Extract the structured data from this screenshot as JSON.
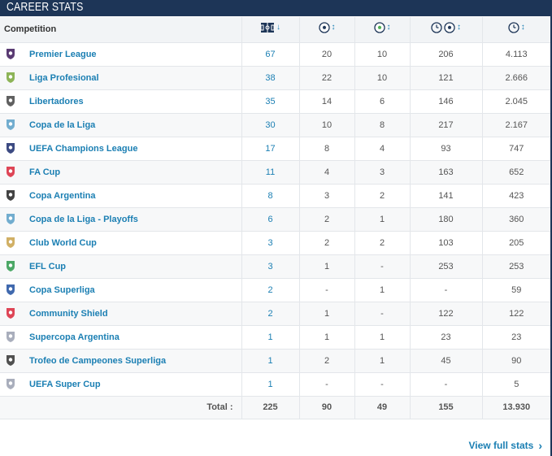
{
  "header": {
    "title": "CAREER STATS"
  },
  "table": {
    "competition_header": "Competition",
    "column_icons": [
      {
        "name": "appearances-icon",
        "sort": "desc"
      },
      {
        "name": "goals-icon",
        "sort": "both"
      },
      {
        "name": "assists-icon",
        "sort": "both"
      },
      {
        "name": "minutes-per-goal-icon",
        "sort": "both"
      },
      {
        "name": "minutes-played-icon",
        "sort": "both"
      }
    ],
    "sort_glyphs": {
      "desc": "↓",
      "both": "↕"
    },
    "rows": [
      {
        "competition": "Premier League",
        "logo": "premier-league-logo",
        "apps": "67",
        "goals": "20",
        "assists": "10",
        "min_per_goal": "206",
        "minutes": "4.113",
        "color": "#3d195b"
      },
      {
        "competition": "Liga Profesional",
        "logo": "liga-profesional-logo",
        "apps": "38",
        "goals": "22",
        "assists": "10",
        "min_per_goal": "121",
        "minutes": "2.666",
        "color": "#7aa83b"
      },
      {
        "competition": "Libertadores",
        "logo": "libertadores-logo",
        "apps": "35",
        "goals": "14",
        "assists": "6",
        "min_per_goal": "146",
        "minutes": "2.045",
        "color": "#444444"
      },
      {
        "competition": "Copa de la Liga",
        "logo": "copa-de-la-liga-logo",
        "apps": "30",
        "goals": "10",
        "assists": "8",
        "min_per_goal": "217",
        "minutes": "2.167",
        "color": "#5aa0c8"
      },
      {
        "competition": "UEFA Champions League",
        "logo": "champions-league-logo",
        "apps": "17",
        "goals": "8",
        "assists": "4",
        "min_per_goal": "93",
        "minutes": "747",
        "color": "#1a2a6c"
      },
      {
        "competition": "FA Cup",
        "logo": "fa-cup-logo",
        "apps": "11",
        "goals": "4",
        "assists": "3",
        "min_per_goal": "163",
        "minutes": "652",
        "color": "#d9263a"
      },
      {
        "competition": "Copa Argentina",
        "logo": "copa-argentina-logo",
        "apps": "8",
        "goals": "3",
        "assists": "2",
        "min_per_goal": "141",
        "minutes": "423",
        "color": "#222222"
      },
      {
        "competition": "Copa de la Liga - Playoffs",
        "logo": "copa-de-la-liga-playoffs-logo",
        "apps": "6",
        "goals": "2",
        "assists": "1",
        "min_per_goal": "180",
        "minutes": "360",
        "color": "#5aa0c8"
      },
      {
        "competition": "Club World Cup",
        "logo": "club-world-cup-logo",
        "apps": "3",
        "goals": "2",
        "assists": "2",
        "min_per_goal": "103",
        "minutes": "205",
        "color": "#c9a24a"
      },
      {
        "competition": "EFL Cup",
        "logo": "efl-cup-logo",
        "apps": "3",
        "goals": "1",
        "assists": "-",
        "min_per_goal": "253",
        "minutes": "253",
        "color": "#2e9a4c"
      },
      {
        "competition": "Copa Superliga",
        "logo": "copa-superliga-logo",
        "apps": "2",
        "goals": "-",
        "assists": "1",
        "min_per_goal": "-",
        "minutes": "59",
        "color": "#1e4fa0"
      },
      {
        "competition": "Community Shield",
        "logo": "community-shield-logo",
        "apps": "2",
        "goals": "1",
        "assists": "-",
        "min_per_goal": "122",
        "minutes": "122",
        "color": "#d9263a"
      },
      {
        "competition": "Supercopa Argentina",
        "logo": "supercopa-argentina-logo",
        "apps": "1",
        "goals": "1",
        "assists": "1",
        "min_per_goal": "23",
        "minutes": "23",
        "color": "#9aa0b0"
      },
      {
        "competition": "Trofeo de Campeones Superliga",
        "logo": "trofeo-de-campeones-logo",
        "apps": "1",
        "goals": "2",
        "assists": "1",
        "min_per_goal": "45",
        "minutes": "90",
        "color": "#333333"
      },
      {
        "competition": "UEFA Super Cup",
        "logo": "uefa-super-cup-logo",
        "apps": "1",
        "goals": "-",
        "assists": "-",
        "min_per_goal": "-",
        "minutes": "5",
        "color": "#9aa0b0"
      }
    ],
    "totals": {
      "label": "Total :",
      "apps": "225",
      "goals": "90",
      "assists": "49",
      "min_per_goal": "155",
      "minutes": "13.930"
    }
  },
  "footer": {
    "view_full_stats": "View full stats",
    "chevron": "›"
  },
  "colors": {
    "header_bg": "#1d3557",
    "link": "#1b7fb3",
    "row_alt": "#f7f8f9"
  }
}
